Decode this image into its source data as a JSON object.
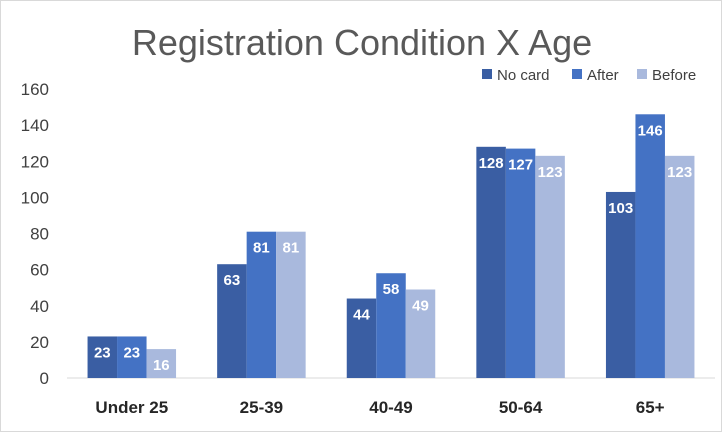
{
  "chart_data": {
    "type": "bar",
    "title": "Registration Condition X Age",
    "xlabel": "",
    "ylabel": "",
    "categories": [
      "Under 25",
      "25-39",
      "40-49",
      "50-64",
      "65+"
    ],
    "series": [
      {
        "name": "No card",
        "color": "#3a5ea3",
        "values": [
          23,
          63,
          44,
          128,
          103
        ]
      },
      {
        "name": "After",
        "color": "#4472c4",
        "values": [
          23,
          81,
          58,
          127,
          146
        ]
      },
      {
        "name": "Before",
        "color": "#a9b9dd",
        "values": [
          16,
          81,
          49,
          123,
          123
        ]
      }
    ],
    "ylim": [
      0,
      160
    ],
    "yticks": [
      0,
      20,
      40,
      60,
      80,
      100,
      120,
      140,
      160
    ],
    "grid": false,
    "legend": "top-right",
    "data_labels": true
  }
}
